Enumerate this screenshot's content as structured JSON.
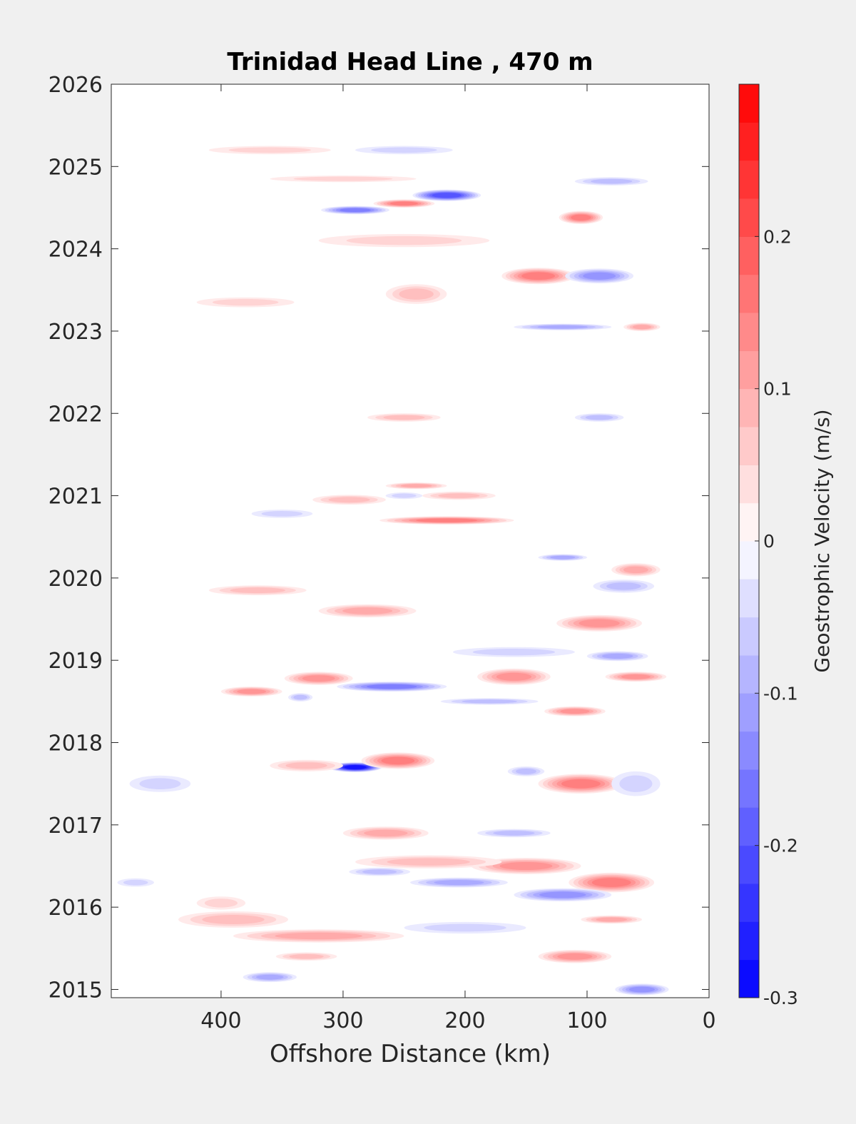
{
  "chart_data": {
    "type": "heatmap",
    "title": "Trinidad Head Line , 470 m",
    "xlabel": "Offshore Distance (km)",
    "ylabel": "",
    "x_reversed": true,
    "xlim": [
      490,
      0
    ],
    "ylim": [
      2014.9,
      2026
    ],
    "xticks": [
      "400",
      "300",
      "200",
      "100",
      "0"
    ],
    "xtick_values": [
      400,
      300,
      200,
      100,
      0
    ],
    "yticks": [
      "2015",
      "2016",
      "2017",
      "2018",
      "2019",
      "2020",
      "2021",
      "2022",
      "2023",
      "2024",
      "2025",
      "2026"
    ],
    "ytick_values": [
      2015,
      2016,
      2017,
      2018,
      2019,
      2020,
      2021,
      2022,
      2023,
      2024,
      2025,
      2026
    ],
    "colorbar": {
      "label": "Geostrophic Velocity (m/s)",
      "range": [
        -0.3,
        0.3
      ],
      "step": 0.025,
      "ticks": [
        "-0.3",
        "-0.2",
        "-0.1",
        "0",
        "0.1",
        "0.2"
      ],
      "tick_values": [
        -0.3,
        -0.2,
        -0.1,
        0,
        0.1,
        0.2
      ],
      "negative_color": "#0000ff",
      "zero_color": "#ffffff",
      "positive_color": "#ff0000"
    },
    "data_segments": [
      {
        "y_start": 2014.9,
        "y_end": 2018.0,
        "x_max": 490,
        "x_min": 50
      },
      {
        "y_start": 2018.0,
        "y_end": 2018.25,
        "x_max": 490,
        "x_min": 50,
        "gap": true
      },
      {
        "y_start": 2018.25,
        "y_end": 2020.3,
        "x_max": 490,
        "x_min": 50
      },
      {
        "y_start": 2020.55,
        "y_end": 2021.15,
        "x_max": 420,
        "x_min": 50
      },
      {
        "y_start": 2021.55,
        "y_end": 2022.05,
        "x_max": 360,
        "x_min": 50
      },
      {
        "y_start": 2023.0,
        "y_end": 2024.35,
        "x_max": 370,
        "x_min": 50
      },
      {
        "y_start": 2024.35,
        "y_end": 2025.3,
        "x_max": 420,
        "x_min": 50
      }
    ],
    "features": [
      {
        "x": 290,
        "y": 2017.7,
        "value": -0.28,
        "rx": 22,
        "ry": 0.06
      },
      {
        "x": 255,
        "y": 2017.78,
        "value": 0.14,
        "rx": 30,
        "ry": 0.1
      },
      {
        "x": 330,
        "y": 2017.72,
        "value": 0.08,
        "rx": 30,
        "ry": 0.07
      },
      {
        "x": 215,
        "y": 2024.65,
        "value": -0.2,
        "rx": 28,
        "ry": 0.07
      },
      {
        "x": 290,
        "y": 2024.47,
        "value": -0.15,
        "rx": 28,
        "ry": 0.05
      },
      {
        "x": 250,
        "y": 2024.55,
        "value": 0.14,
        "rx": 25,
        "ry": 0.05
      },
      {
        "x": 105,
        "y": 2024.38,
        "value": 0.15,
        "rx": 18,
        "ry": 0.08
      },
      {
        "x": 140,
        "y": 2023.67,
        "value": 0.15,
        "rx": 30,
        "ry": 0.1
      },
      {
        "x": 90,
        "y": 2023.67,
        "value": -0.12,
        "rx": 28,
        "ry": 0.09
      },
      {
        "x": 240,
        "y": 2023.45,
        "value": 0.07,
        "rx": 25,
        "ry": 0.12
      },
      {
        "x": 250,
        "y": 2024.1,
        "value": 0.05,
        "rx": 70,
        "ry": 0.08
      },
      {
        "x": 120,
        "y": 2023.05,
        "value": -0.1,
        "rx": 40,
        "ry": 0.04
      },
      {
        "x": 55,
        "y": 2023.05,
        "value": 0.1,
        "rx": 15,
        "ry": 0.05
      },
      {
        "x": 215,
        "y": 2020.7,
        "value": 0.15,
        "rx": 55,
        "ry": 0.05
      },
      {
        "x": 240,
        "y": 2021.12,
        "value": 0.1,
        "rx": 25,
        "ry": 0.04
      },
      {
        "x": 295,
        "y": 2020.95,
        "value": 0.07,
        "rx": 30,
        "ry": 0.06
      },
      {
        "x": 205,
        "y": 2021.0,
        "value": 0.08,
        "rx": 30,
        "ry": 0.05
      },
      {
        "x": 250,
        "y": 2021.0,
        "value": -0.06,
        "rx": 15,
        "ry": 0.04
      },
      {
        "x": 350,
        "y": 2020.78,
        "value": -0.06,
        "rx": 25,
        "ry": 0.05
      },
      {
        "x": 250,
        "y": 2021.95,
        "value": 0.08,
        "rx": 30,
        "ry": 0.05
      },
      {
        "x": 90,
        "y": 2021.95,
        "value": -0.07,
        "rx": 20,
        "ry": 0.05
      },
      {
        "x": 260,
        "y": 2018.68,
        "value": -0.14,
        "rx": 45,
        "ry": 0.06
      },
      {
        "x": 320,
        "y": 2018.78,
        "value": 0.12,
        "rx": 28,
        "ry": 0.08
      },
      {
        "x": 375,
        "y": 2018.62,
        "value": 0.12,
        "rx": 25,
        "ry": 0.06
      },
      {
        "x": 160,
        "y": 2018.8,
        "value": 0.12,
        "rx": 30,
        "ry": 0.1
      },
      {
        "x": 60,
        "y": 2018.8,
        "value": 0.12,
        "rx": 25,
        "ry": 0.06
      },
      {
        "x": 335,
        "y": 2018.55,
        "value": -0.08,
        "rx": 10,
        "ry": 0.05
      },
      {
        "x": 110,
        "y": 2018.38,
        "value": 0.12,
        "rx": 25,
        "ry": 0.06
      },
      {
        "x": 180,
        "y": 2018.5,
        "value": -0.07,
        "rx": 40,
        "ry": 0.04
      },
      {
        "x": 90,
        "y": 2019.45,
        "value": 0.12,
        "rx": 35,
        "ry": 0.1
      },
      {
        "x": 70,
        "y": 2019.9,
        "value": -0.08,
        "rx": 25,
        "ry": 0.08
      },
      {
        "x": 280,
        "y": 2019.6,
        "value": 0.09,
        "rx": 40,
        "ry": 0.08
      },
      {
        "x": 370,
        "y": 2019.85,
        "value": 0.07,
        "rx": 40,
        "ry": 0.06
      },
      {
        "x": 60,
        "y": 2020.1,
        "value": 0.1,
        "rx": 20,
        "ry": 0.08
      },
      {
        "x": 120,
        "y": 2020.25,
        "value": -0.1,
        "rx": 20,
        "ry": 0.04
      },
      {
        "x": 75,
        "y": 2019.05,
        "value": -0.09,
        "rx": 25,
        "ry": 0.06
      },
      {
        "x": 105,
        "y": 2017.5,
        "value": 0.14,
        "rx": 35,
        "ry": 0.12
      },
      {
        "x": 150,
        "y": 2017.65,
        "value": -0.08,
        "rx": 15,
        "ry": 0.06
      },
      {
        "x": 60,
        "y": 2017.5,
        "value": -0.05,
        "rx": 20,
        "ry": 0.15
      },
      {
        "x": 80,
        "y": 2016.3,
        "value": 0.15,
        "rx": 35,
        "ry": 0.12
      },
      {
        "x": 150,
        "y": 2016.5,
        "value": 0.12,
        "rx": 45,
        "ry": 0.1
      },
      {
        "x": 230,
        "y": 2016.55,
        "value": 0.08,
        "rx": 60,
        "ry": 0.08
      },
      {
        "x": 120,
        "y": 2016.15,
        "value": -0.12,
        "rx": 40,
        "ry": 0.08
      },
      {
        "x": 205,
        "y": 2016.3,
        "value": -0.1,
        "rx": 40,
        "ry": 0.06
      },
      {
        "x": 270,
        "y": 2016.43,
        "value": -0.08,
        "rx": 25,
        "ry": 0.05
      },
      {
        "x": 265,
        "y": 2016.9,
        "value": 0.1,
        "rx": 35,
        "ry": 0.08
      },
      {
        "x": 160,
        "y": 2016.9,
        "value": -0.08,
        "rx": 30,
        "ry": 0.05
      },
      {
        "x": 320,
        "y": 2015.65,
        "value": 0.1,
        "rx": 70,
        "ry": 0.08
      },
      {
        "x": 200,
        "y": 2015.75,
        "value": -0.06,
        "rx": 50,
        "ry": 0.07
      },
      {
        "x": 390,
        "y": 2015.85,
        "value": 0.08,
        "rx": 45,
        "ry": 0.1
      },
      {
        "x": 400,
        "y": 2016.05,
        "value": 0.05,
        "rx": 20,
        "ry": 0.08
      },
      {
        "x": 110,
        "y": 2015.4,
        "value": 0.12,
        "rx": 30,
        "ry": 0.08
      },
      {
        "x": 80,
        "y": 2015.85,
        "value": 0.1,
        "rx": 25,
        "ry": 0.05
      },
      {
        "x": 55,
        "y": 2015.0,
        "value": -0.13,
        "rx": 22,
        "ry": 0.07
      },
      {
        "x": 360,
        "y": 2015.15,
        "value": -0.09,
        "rx": 22,
        "ry": 0.06
      },
      {
        "x": 330,
        "y": 2015.4,
        "value": 0.07,
        "rx": 25,
        "ry": 0.05
      },
      {
        "x": 470,
        "y": 2016.3,
        "value": -0.05,
        "rx": 15,
        "ry": 0.05
      },
      {
        "x": 450,
        "y": 2017.5,
        "value": -0.05,
        "rx": 25,
        "ry": 0.1
      },
      {
        "x": 250,
        "y": 2025.2,
        "value": -0.05,
        "rx": 40,
        "ry": 0.05
      },
      {
        "x": 360,
        "y": 2025.2,
        "value": 0.05,
        "rx": 50,
        "ry": 0.05
      },
      {
        "x": 300,
        "y": 2024.85,
        "value": 0.05,
        "rx": 60,
        "ry": 0.04
      },
      {
        "x": 80,
        "y": 2024.82,
        "value": -0.07,
        "rx": 30,
        "ry": 0.05
      },
      {
        "x": 380,
        "y": 2023.35,
        "value": 0.05,
        "rx": 40,
        "ry": 0.06
      },
      {
        "x": 160,
        "y": 2019.1,
        "value": -0.05,
        "rx": 50,
        "ry": 0.06
      }
    ]
  }
}
